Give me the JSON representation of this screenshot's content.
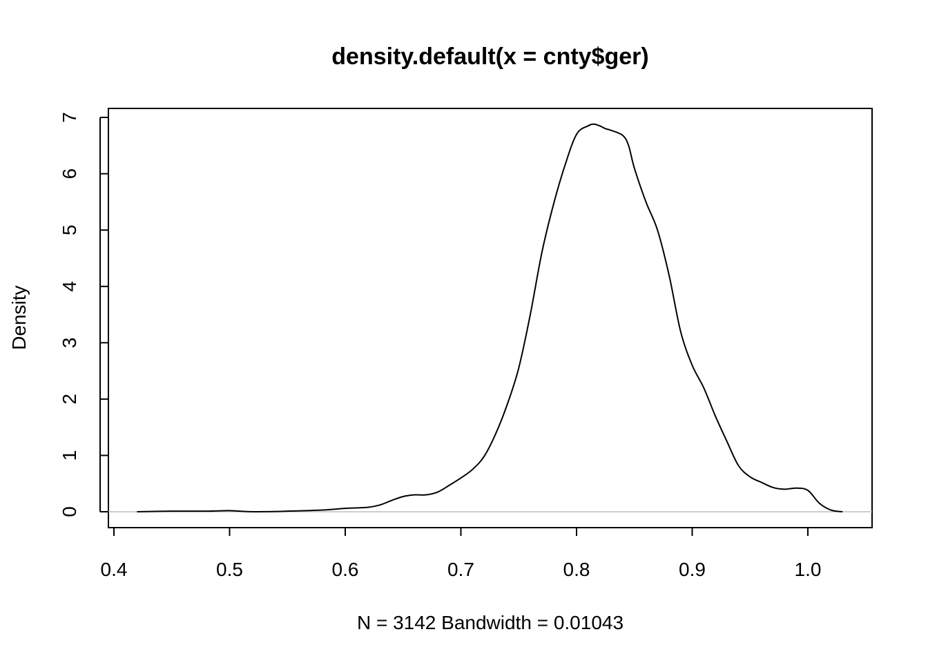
{
  "chart_data": {
    "type": "line",
    "title": "density.default(x = cnty$ger)",
    "xlabel": "N = 3142   Bandwidth = 0.01043",
    "ylabel": "Density",
    "xlim": [
      0.4,
      1.05
    ],
    "ylim": [
      0,
      7
    ],
    "x_ticks": [
      0.4,
      0.5,
      0.6,
      0.7,
      0.8,
      0.9,
      1.0
    ],
    "x_tick_labels": [
      "0.4",
      "0.5",
      "0.6",
      "0.7",
      "0.8",
      "0.9",
      "1.0"
    ],
    "y_ticks": [
      0,
      1,
      2,
      3,
      4,
      5,
      6,
      7
    ],
    "y_tick_labels": [
      "0",
      "1",
      "2",
      "3",
      "4",
      "5",
      "6",
      "7"
    ],
    "grid": false,
    "baseline_y": 0,
    "series": [
      {
        "x": [
          0.42,
          0.45,
          0.48,
          0.5,
          0.52,
          0.55,
          0.58,
          0.6,
          0.62,
          0.63,
          0.64,
          0.65,
          0.66,
          0.67,
          0.68,
          0.69,
          0.7,
          0.71,
          0.72,
          0.73,
          0.74,
          0.75,
          0.76,
          0.77,
          0.78,
          0.79,
          0.8,
          0.81,
          0.815,
          0.82,
          0.825,
          0.83,
          0.84,
          0.845,
          0.85,
          0.86,
          0.87,
          0.88,
          0.89,
          0.9,
          0.91,
          0.92,
          0.93,
          0.94,
          0.95,
          0.96,
          0.97,
          0.98,
          0.99,
          1.0,
          1.01,
          1.02,
          1.03
        ],
        "y": [
          0.0,
          0.01,
          0.01,
          0.02,
          0.0,
          0.01,
          0.03,
          0.06,
          0.08,
          0.12,
          0.2,
          0.27,
          0.3,
          0.3,
          0.35,
          0.47,
          0.6,
          0.75,
          0.98,
          1.38,
          1.9,
          2.55,
          3.5,
          4.6,
          5.45,
          6.15,
          6.7,
          6.85,
          6.88,
          6.85,
          6.8,
          6.77,
          6.68,
          6.5,
          6.1,
          5.5,
          5.0,
          4.2,
          3.2,
          2.6,
          2.2,
          1.7,
          1.25,
          0.82,
          0.62,
          0.52,
          0.43,
          0.4,
          0.42,
          0.38,
          0.15,
          0.03,
          0.0
        ]
      }
    ]
  }
}
